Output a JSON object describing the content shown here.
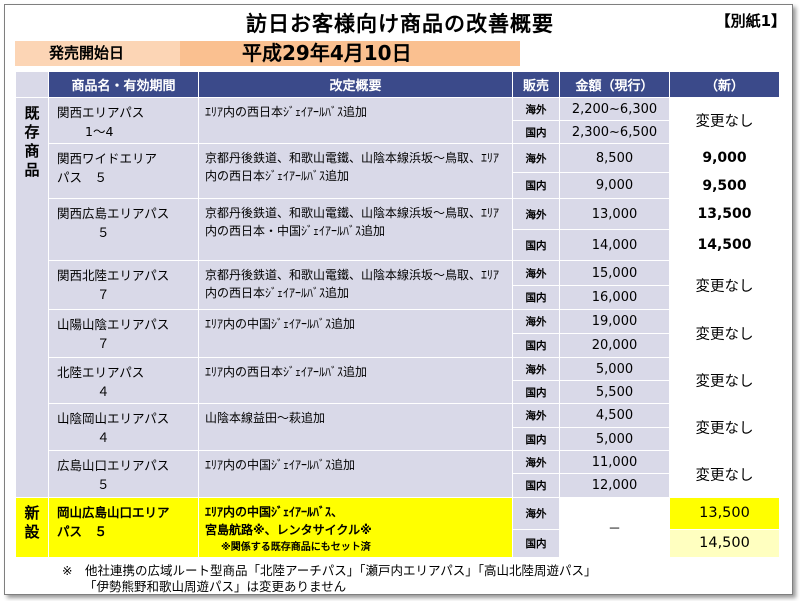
{
  "title": "訪日お客様向け商品の改善概要",
  "attachment": "【別紙1】",
  "release": {
    "label": "発売開始日",
    "date": "平成29年4月10日"
  },
  "headers": {
    "name": "商品名・有効期間",
    "summary": "改定概要",
    "sales": "販売",
    "price": "金額（現行）",
    "new": "（新）"
  },
  "categories": {
    "existing": "既存商品",
    "new": "新設"
  },
  "products": [
    {
      "name1": "関西エリアパス",
      "name2": "1～4",
      "summary": "ｴﾘｱ内の西日本ｼﾞｪｲｱｰﾙﾊﾞｽ追加",
      "rows": [
        {
          "sales": "海外",
          "price": "2,200~6,300"
        },
        {
          "sales": "国内",
          "price": "2,300~6,500"
        }
      ],
      "new_merged": "変更なし"
    },
    {
      "name1": "関西ワイドエリア",
      "name2": "パス　５",
      "summary": "京都丹後鉄道、和歌山電鐵、山陰本線浜坂～鳥取、ｴﾘｱ内の西日本ｼﾞｪｲｱｰﾙﾊﾞｽ追加",
      "rows": [
        {
          "sales": "海外",
          "price": "8,500",
          "new": "9,000"
        },
        {
          "sales": "国内",
          "price": "9,000",
          "new": "9,500"
        }
      ]
    },
    {
      "name1": "関西広島エリアパス",
      "name2": "５",
      "summary": "京都丹後鉄道、和歌山電鐵、山陰本線浜坂～鳥取、ｴﾘｱ内の西日本・中国ｼﾞｪｲｱｰﾙﾊﾞｽ追加",
      "rows": [
        {
          "sales": "海外",
          "price": "13,000",
          "new": "13,500"
        },
        {
          "sales": "国内",
          "price": "14,000",
          "new": "14,500"
        }
      ]
    },
    {
      "name1": "関西北陸エリアパス",
      "name2": "７",
      "summary": "京都丹後鉄道、和歌山電鐵、山陰本線浜坂～鳥取、ｴﾘｱ内の西日本ｼﾞｪｲｱｰﾙﾊﾞｽ追加",
      "rows": [
        {
          "sales": "海外",
          "price": "15,000"
        },
        {
          "sales": "国内",
          "price": "16,000"
        }
      ],
      "new_merged": "変更なし"
    },
    {
      "name1": "山陽山陰エリアパス",
      "name2": "７",
      "summary": "ｴﾘｱ内の中国ｼﾞｪｲｱｰﾙﾊﾞｽ追加",
      "rows": [
        {
          "sales": "海外",
          "price": "19,000"
        },
        {
          "sales": "国内",
          "price": "20,000"
        }
      ],
      "new_merged": "変更なし"
    },
    {
      "name1": "北陸エリアパス",
      "name2": "４",
      "summary": "ｴﾘｱ内の西日本ｼﾞｪｲｱｰﾙﾊﾞｽ追加",
      "rows": [
        {
          "sales": "海外",
          "price": "5,000"
        },
        {
          "sales": "国内",
          "price": "5,500"
        }
      ],
      "new_merged": "変更なし"
    },
    {
      "name1": "山陰岡山エリアパス",
      "name2": "４",
      "summary": "山陰本線益田～萩追加",
      "rows": [
        {
          "sales": "海外",
          "price": "4,500"
        },
        {
          "sales": "国内",
          "price": "5,000"
        }
      ],
      "new_merged": "変更なし"
    },
    {
      "name1": "広島山口エリアパス",
      "name2": "５",
      "summary": "ｴﾘｱ内の中国ｼﾞｪｲｱｰﾙﾊﾞｽ追加",
      "rows": [
        {
          "sales": "海外",
          "price": "11,000"
        },
        {
          "sales": "国内",
          "price": "12,000"
        }
      ],
      "new_merged": "変更なし"
    }
  ],
  "new_product": {
    "name1": "岡山広島山口エリア",
    "name2": "パス　５",
    "summary1": "ｴﾘｱ内の中国ｼﾞｪｲｱｰﾙﾊﾞｽ、",
    "summary2": "宮島航路※、レンタサイクル※",
    "summary_note": "※関係する既存商品にもセット済",
    "rows": [
      {
        "sales": "海外",
        "new": "13,500"
      },
      {
        "sales": "国内",
        "new": "14,500"
      }
    ],
    "price": "－"
  },
  "footnote": {
    "line1": "※　他社連携の広域ルート型商品「北陸アーチパス」「瀬戸内エリアパス」「高山北陸周遊パス」",
    "line2": "「伊勢熊野和歌山周遊パス」は変更ありません"
  }
}
